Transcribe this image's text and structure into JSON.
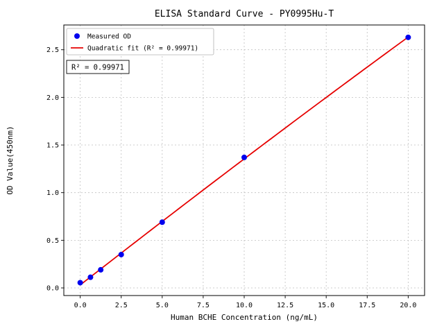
{
  "colors": {
    "scatter": "#0000ee",
    "fit_line": "#e60000",
    "grid": "#bfbfbf",
    "background": "#ffffff"
  },
  "chart_data": {
    "type": "scatter",
    "title": "ELISA Standard Curve - PY0995Hu-T",
    "xlabel": "Human BCHE Concentration (ng/mL)",
    "ylabel": "OD Value(450nm)",
    "xlim": [
      -1,
      21
    ],
    "ylim": [
      -0.08,
      2.76
    ],
    "xticks": [
      0.0,
      2.5,
      5.0,
      7.5,
      10.0,
      12.5,
      15.0,
      17.5,
      20.0
    ],
    "xtick_labels": [
      "0.0",
      "2.5",
      "5.0",
      "7.5",
      "10.0",
      "12.5",
      "15.0",
      "17.5",
      "20.0"
    ],
    "yticks": [
      0.0,
      0.5,
      1.0,
      1.5,
      2.0,
      2.5
    ],
    "ytick_labels": [
      "0.0",
      "0.5",
      "1.0",
      "1.5",
      "2.0",
      "2.5"
    ],
    "grid": true,
    "legend_position": "upper-left",
    "annotation": "R² = 0.99971",
    "series": [
      {
        "name": "Measured OD",
        "type": "scatter",
        "color": "#0000ee",
        "x": [
          0,
          0.625,
          1.25,
          2.5,
          5,
          10,
          20
        ],
        "y": [
          0.055,
          0.112,
          0.19,
          0.35,
          0.69,
          1.37,
          2.63
        ]
      },
      {
        "name": "Quadratic fit (R² = 0.99971)",
        "type": "line",
        "color": "#e60000",
        "fit": "quadratic"
      }
    ]
  }
}
